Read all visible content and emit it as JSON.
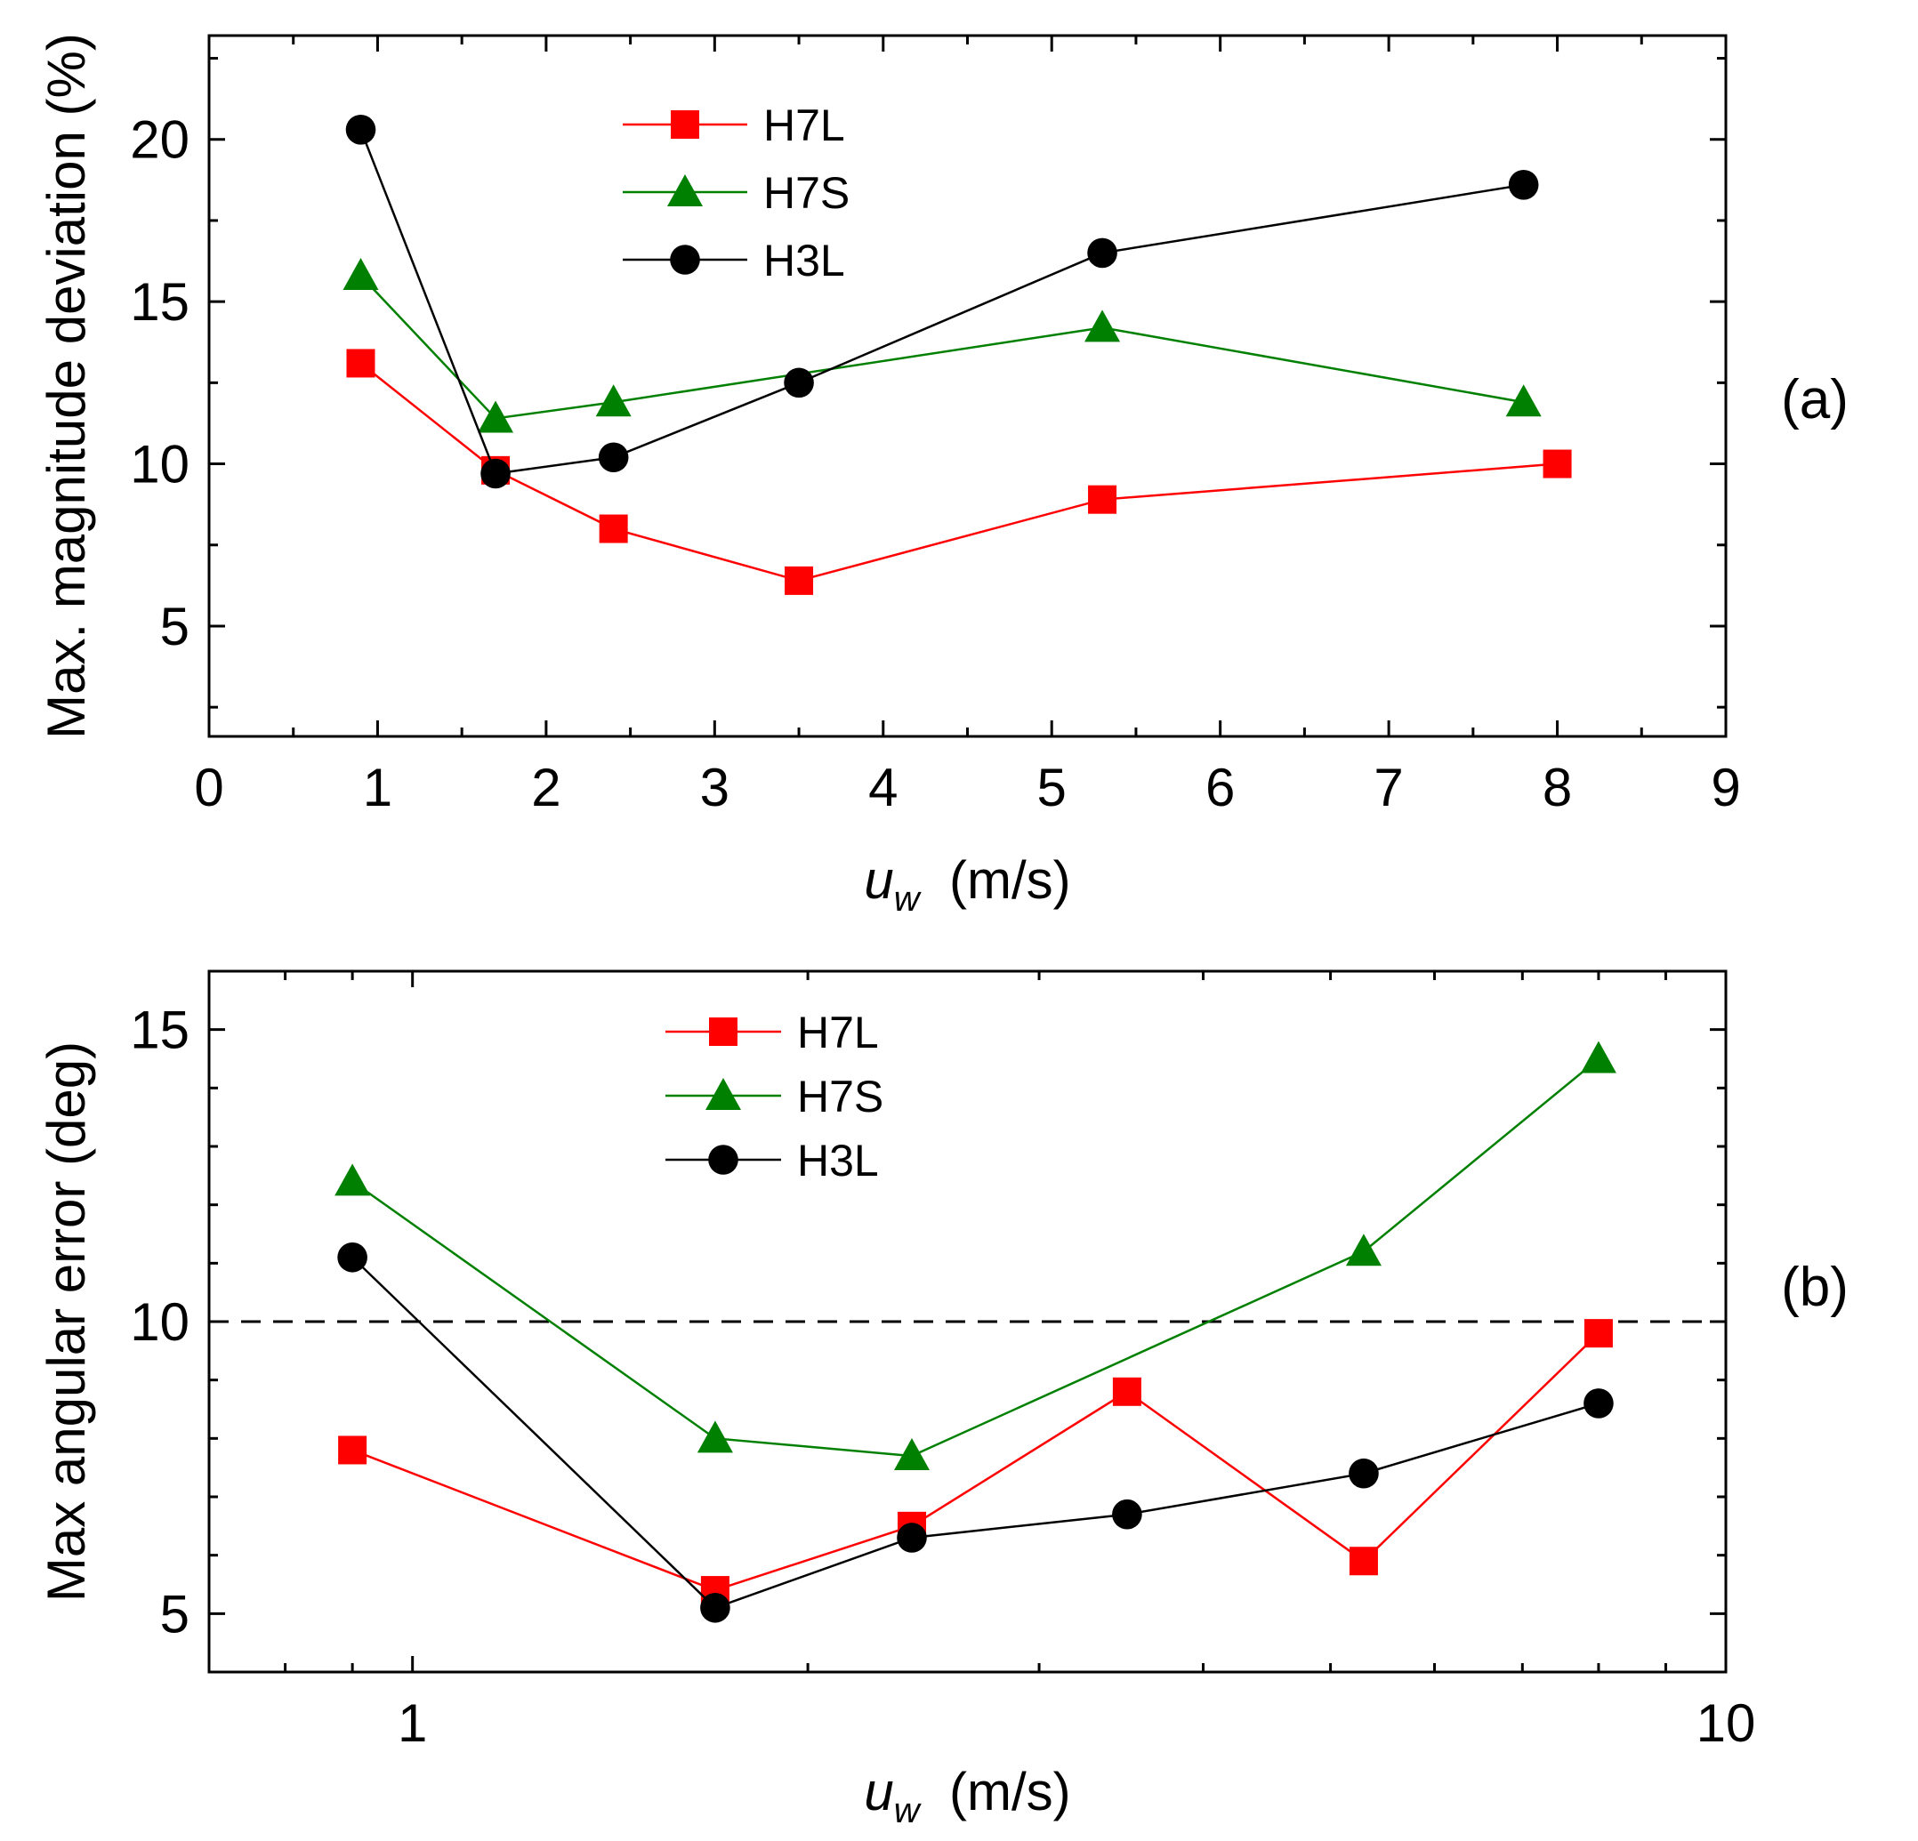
{
  "chart_data": [
    {
      "panel": "(a)",
      "type": "line",
      "xscale": "linear",
      "xlim": [
        0,
        9
      ],
      "ylim": [
        1.6,
        23.2
      ],
      "xticks": [
        "0",
        "1",
        "2",
        "3",
        "4",
        "5",
        "6",
        "7",
        "8",
        "9"
      ],
      "yticks": [
        "5",
        "10",
        "15",
        "20"
      ],
      "xlabel_var": "u",
      "xlabel_sub": "w",
      "xlabel_unit": "(m/s)",
      "ylabel": "Max. magnitude deviation (%)",
      "legend": "top-left",
      "series": [
        {
          "name": "H7L",
          "color": "#ff0000",
          "marker": "square",
          "x": [
            0.9,
            1.7,
            2.4,
            3.5,
            5.3,
            8.0
          ],
          "y": [
            13.1,
            9.8,
            8.0,
            6.4,
            8.9,
            10.0
          ]
        },
        {
          "name": "H7S",
          "color": "#008000",
          "marker": "triangle",
          "x": [
            0.9,
            1.7,
            2.4,
            5.3,
            7.8
          ],
          "y": [
            15.8,
            11.4,
            11.9,
            14.2,
            11.9
          ]
        },
        {
          "name": "H3L",
          "color": "#000000",
          "marker": "circle",
          "x": [
            0.9,
            1.7,
            2.4,
            3.5,
            5.3,
            7.8
          ],
          "y": [
            20.3,
            9.7,
            10.2,
            12.5,
            16.5,
            18.6
          ]
        }
      ]
    },
    {
      "panel": "(b)",
      "type": "line",
      "xscale": "log",
      "xlim": [
        0.7,
        10
      ],
      "ylim": [
        4.0,
        16.0
      ],
      "xticks": [
        "1",
        "10"
      ],
      "yticks": [
        "5",
        "10",
        "15"
      ],
      "xlabel_var": "u",
      "xlabel_sub": "w",
      "xlabel_unit": "(m/s)",
      "ylabel": "Max angular error  (deg)",
      "legend": "top-left",
      "reference_line": {
        "y": 10,
        "style": "dashed"
      },
      "series": [
        {
          "name": "H7L",
          "color": "#ff0000",
          "marker": "square",
          "x": [
            0.9,
            1.7,
            2.4,
            3.5,
            5.3,
            8.0
          ],
          "y": [
            7.8,
            5.4,
            6.5,
            8.8,
            5.9,
            9.8
          ]
        },
        {
          "name": "H7S",
          "color": "#008000",
          "marker": "triangle",
          "x": [
            0.9,
            1.7,
            2.4,
            5.3,
            8.0
          ],
          "y": [
            12.4,
            8.0,
            7.7,
            11.2,
            14.5
          ]
        },
        {
          "name": "H3L",
          "color": "#000000",
          "marker": "circle",
          "x": [
            0.9,
            1.7,
            2.4,
            3.5,
            5.3,
            8.0
          ],
          "y": [
            11.1,
            5.1,
            6.3,
            6.7,
            7.4,
            8.6
          ]
        }
      ]
    }
  ]
}
